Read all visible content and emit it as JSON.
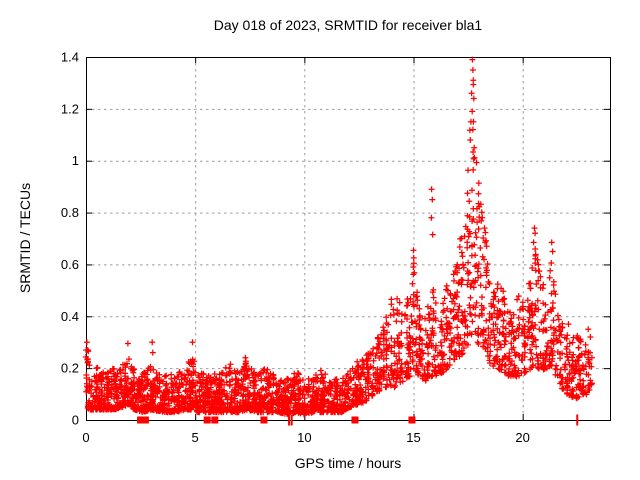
{
  "chart_data": {
    "type": "scatter",
    "title": "Day 018 of 2023, SRMTID for receiver bla1",
    "xlabel": "GPS time / hours",
    "ylabel": "SRMTID / TECUs",
    "xlim": [
      0,
      24
    ],
    "ylim": [
      0,
      1.4
    ],
    "xticks": [
      0,
      5,
      10,
      15,
      20
    ],
    "xtick_labels": [
      "0",
      "5",
      "10",
      "15",
      "20"
    ],
    "yticks": [
      0,
      0.2,
      0.4,
      0.6,
      0.8,
      1,
      1.2,
      1.4
    ],
    "ytick_labels": [
      "0",
      "0.2",
      "0.4",
      "0.6",
      "0.8",
      "1",
      "1.2",
      "1.4"
    ],
    "grid": true,
    "legend": "none",
    "marker": {
      "shape": "plus",
      "color": "#ff0000",
      "size": 6,
      "stroke_width": 1.25
    },
    "grid_color": "#9b9b9b",
    "border_color": "#000000",
    "envelope_keyframes": [
      [
        0.0,
        0.05,
        0.3,
        150
      ],
      [
        0.2,
        0.04,
        0.24,
        150
      ],
      [
        0.5,
        0.04,
        0.21,
        150
      ],
      [
        0.9,
        0.04,
        0.18,
        150
      ],
      [
        1.3,
        0.04,
        0.21,
        150
      ],
      [
        1.7,
        0.05,
        0.24,
        150
      ],
      [
        1.95,
        0.06,
        0.28,
        150
      ],
      [
        2.2,
        0.04,
        0.2,
        150
      ],
      [
        2.6,
        0.03,
        0.18,
        150
      ],
      [
        3.0,
        0.04,
        0.21,
        150
      ],
      [
        3.5,
        0.03,
        0.17,
        150
      ],
      [
        4.1,
        0.03,
        0.18,
        150
      ],
      [
        4.6,
        0.04,
        0.22,
        150
      ],
      [
        4.85,
        0.04,
        0.26,
        150
      ],
      [
        5.15,
        0.03,
        0.19,
        150
      ],
      [
        5.6,
        0.03,
        0.17,
        150
      ],
      [
        6.1,
        0.03,
        0.19,
        150
      ],
      [
        6.6,
        0.03,
        0.21,
        150
      ],
      [
        7.0,
        0.03,
        0.19,
        150
      ],
      [
        7.35,
        0.04,
        0.23,
        150
      ],
      [
        7.8,
        0.03,
        0.18,
        150
      ],
      [
        8.3,
        0.03,
        0.21,
        150
      ],
      [
        8.8,
        0.03,
        0.16,
        150
      ],
      [
        9.3,
        0.02,
        0.16,
        150
      ],
      [
        9.6,
        0.03,
        0.21,
        140
      ],
      [
        10.0,
        0.02,
        0.15,
        140
      ],
      [
        10.4,
        0.03,
        0.17,
        140
      ],
      [
        10.8,
        0.03,
        0.2,
        140
      ],
      [
        11.2,
        0.03,
        0.16,
        140
      ],
      [
        11.7,
        0.03,
        0.17,
        140
      ],
      [
        12.1,
        0.05,
        0.19,
        130
      ],
      [
        12.45,
        0.06,
        0.22,
        120
      ],
      [
        12.8,
        0.07,
        0.26,
        120
      ],
      [
        13.2,
        0.1,
        0.31,
        110
      ],
      [
        13.6,
        0.12,
        0.36,
        110
      ],
      [
        13.95,
        0.12,
        0.46,
        110
      ],
      [
        14.25,
        0.13,
        0.47,
        110
      ],
      [
        14.55,
        0.15,
        0.44,
        110
      ],
      [
        14.85,
        0.17,
        0.5,
        110
      ],
      [
        15.0,
        0.2,
        0.62,
        115
      ],
      [
        15.25,
        0.17,
        0.44,
        110
      ],
      [
        15.55,
        0.15,
        0.4,
        110
      ],
      [
        15.85,
        0.17,
        0.52,
        115
      ],
      [
        16.1,
        0.17,
        0.46,
        110
      ],
      [
        16.45,
        0.19,
        0.5,
        110
      ],
      [
        16.75,
        0.22,
        0.58,
        115
      ],
      [
        17.0,
        0.24,
        0.68,
        115
      ],
      [
        17.2,
        0.25,
        0.72,
        120
      ],
      [
        17.4,
        0.27,
        0.88,
        125
      ],
      [
        17.55,
        0.3,
        1.12,
        130
      ],
      [
        17.68,
        0.33,
        1.38,
        130
      ],
      [
        17.8,
        0.32,
        1.22,
        130
      ],
      [
        17.92,
        0.3,
        1.02,
        125
      ],
      [
        18.05,
        0.27,
        0.88,
        120
      ],
      [
        18.2,
        0.25,
        0.78,
        115
      ],
      [
        18.45,
        0.22,
        0.62,
        110
      ],
      [
        18.75,
        0.2,
        0.55,
        105
      ],
      [
        19.1,
        0.19,
        0.5,
        105
      ],
      [
        19.45,
        0.16,
        0.44,
        105
      ],
      [
        19.8,
        0.17,
        0.48,
        105
      ],
      [
        20.15,
        0.18,
        0.45,
        105
      ],
      [
        20.45,
        0.2,
        0.62,
        110
      ],
      [
        20.6,
        0.21,
        0.72,
        110
      ],
      [
        20.85,
        0.19,
        0.54,
        105
      ],
      [
        21.15,
        0.2,
        0.52,
        105
      ],
      [
        21.35,
        0.21,
        0.66,
        110
      ],
      [
        21.6,
        0.15,
        0.44,
        100
      ],
      [
        21.9,
        0.11,
        0.37,
        100
      ],
      [
        22.2,
        0.09,
        0.34,
        110
      ],
      [
        22.55,
        0.08,
        0.34,
        110
      ],
      [
        22.85,
        0.09,
        0.3,
        100
      ],
      [
        23.05,
        0.1,
        0.28,
        80
      ],
      [
        23.2,
        0.12,
        0.25,
        60
      ]
    ],
    "outlier_points": [
      [
        17.7,
        1.39
      ],
      [
        17.72,
        1.35
      ],
      [
        17.74,
        1.31
      ],
      [
        17.66,
        1.26
      ],
      [
        17.76,
        1.24
      ],
      [
        17.69,
        1.19
      ],
      [
        17.63,
        1.15
      ],
      [
        17.72,
        1.12
      ],
      [
        17.6,
        1.08
      ],
      [
        17.78,
        1.05
      ],
      [
        15.0,
        0.655
      ],
      [
        15.01,
        0.625
      ],
      [
        14.99,
        0.59
      ],
      [
        15.83,
        0.89
      ],
      [
        15.86,
        0.85
      ],
      [
        15.82,
        0.78
      ],
      [
        15.88,
        0.715
      ],
      [
        20.54,
        0.74
      ],
      [
        20.57,
        0.72
      ],
      [
        20.5,
        0.685
      ],
      [
        21.33,
        0.685
      ],
      [
        21.37,
        0.65
      ],
      [
        18.15,
        0.78
      ],
      [
        18.25,
        0.74
      ],
      [
        13.99,
        0.465
      ],
      [
        0.04,
        0.3
      ],
      [
        0.08,
        0.27
      ],
      [
        1.92,
        0.295
      ],
      [
        3.03,
        0.3
      ],
      [
        3.06,
        0.26
      ],
      [
        4.88,
        0.3
      ],
      [
        7.3,
        0.24
      ],
      [
        12.42,
        0.225
      ],
      [
        6.62,
        0.215
      ],
      [
        22.1,
        0.37
      ],
      [
        23.0,
        0.35
      ],
      [
        23.1,
        0.32
      ]
    ],
    "zero_markers": {
      "squares": [
        2.5,
        2.72,
        5.55,
        5.9,
        8.15,
        12.32,
        14.93
      ],
      "bars": [
        9.3,
        9.42,
        22.5
      ]
    },
    "generator": {
      "seed": 20230118,
      "skew_quiet": 1.9,
      "skew_active": 1.5,
      "skew_split_hour": 12.6,
      "x_jitter": 0.02
    }
  }
}
